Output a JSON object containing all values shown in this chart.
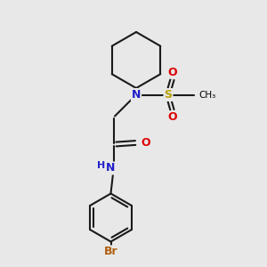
{
  "background_color": "#e8e8e8",
  "bond_color": "#1a1a1a",
  "bond_width": 1.5,
  "N_color": "#2020cc",
  "O_color": "#dd0000",
  "S_color": "#b8a000",
  "Br_color": "#b06010",
  "figsize": [
    3.0,
    3.0
  ],
  "dpi": 100,
  "xlim": [
    0,
    10
  ],
  "ylim": [
    0,
    10
  ]
}
